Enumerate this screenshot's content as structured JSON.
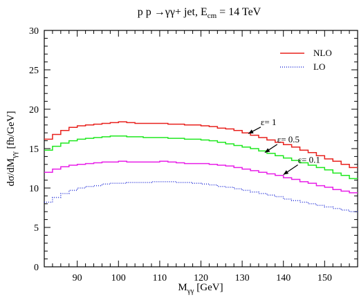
{
  "chart_data": {
    "type": "line",
    "step": true,
    "title": "p p →γγ+ jet, E_cm = 14 TeV",
    "title_parts": {
      "main": "p p →γγ+ jet, E",
      "sub": "cm",
      "tail": " = 14 TeV"
    },
    "xlabel": "Mγγ [GeV]",
    "xlabel_parts": {
      "main": "M",
      "sub": "γγ",
      "tail": " [GeV]"
    },
    "ylabel": "dσ/dMγγ [fb/GeV]",
    "ylabel_parts": {
      "main": "dσ/dM",
      "sub": "γγ",
      "tail": " [fb/GeV]"
    },
    "xlim": [
      82,
      158
    ],
    "ylim": [
      0,
      30
    ],
    "xticks": [
      90,
      100,
      110,
      120,
      130,
      140,
      150
    ],
    "yticks": [
      0,
      5,
      10,
      15,
      20,
      25,
      30
    ],
    "grid": false,
    "legend": {
      "placement": "top-right",
      "entries": [
        {
          "label": "NLO",
          "color": "#e8201c",
          "style": "solid"
        },
        {
          "label": "LO",
          "color": "#2430d8",
          "style": "dotted"
        }
      ]
    },
    "bin_edges": [
      82,
      84,
      86,
      88,
      90,
      92,
      94,
      96,
      98,
      100,
      102,
      104,
      106,
      108,
      110,
      112,
      114,
      116,
      118,
      120,
      122,
      124,
      126,
      128,
      130,
      132,
      134,
      136,
      138,
      140,
      142,
      144,
      146,
      148,
      150,
      152,
      154,
      156,
      158
    ],
    "series": [
      {
        "name": "NLO",
        "curve": "ε = 1",
        "color": "#e8201c",
        "style": "solid",
        "values": [
          16.2,
          16.8,
          17.3,
          17.7,
          17.9,
          18.0,
          18.1,
          18.2,
          18.3,
          18.4,
          18.3,
          18.2,
          18.2,
          18.2,
          18.2,
          18.1,
          18.1,
          18.0,
          18.0,
          17.9,
          17.8,
          17.6,
          17.5,
          17.3,
          17.0,
          16.7,
          16.4,
          16.1,
          15.8,
          15.5,
          15.2,
          14.8,
          14.5,
          14.1,
          13.7,
          13.4,
          13.0,
          12.6
        ]
      },
      {
        "name": "NLO",
        "curve": "ε = 0.5",
        "color": "#1ee81e",
        "style": "solid",
        "values": [
          14.8,
          15.3,
          15.7,
          16.0,
          16.2,
          16.3,
          16.4,
          16.5,
          16.6,
          16.6,
          16.5,
          16.5,
          16.4,
          16.4,
          16.4,
          16.3,
          16.3,
          16.2,
          16.2,
          16.1,
          16.0,
          15.8,
          15.6,
          15.4,
          15.2,
          15.0,
          14.7,
          14.4,
          14.1,
          13.8,
          13.5,
          13.2,
          12.9,
          12.6,
          12.3,
          11.9,
          11.6,
          11.2
        ]
      },
      {
        "name": "NLO",
        "curve": "ε = 0.1",
        "color": "#e81ee8",
        "style": "solid",
        "values": [
          12.0,
          12.4,
          12.7,
          12.9,
          13.0,
          13.1,
          13.2,
          13.3,
          13.3,
          13.4,
          13.3,
          13.3,
          13.3,
          13.3,
          13.4,
          13.3,
          13.2,
          13.1,
          13.1,
          13.1,
          13.0,
          12.9,
          12.8,
          12.6,
          12.4,
          12.2,
          12.0,
          11.8,
          11.6,
          11.3,
          11.1,
          10.8,
          10.6,
          10.3,
          10.1,
          9.8,
          9.6,
          9.4
        ]
      },
      {
        "name": "LO",
        "color": "#2430d8",
        "style": "dotted",
        "values": [
          8.2,
          8.8,
          9.3,
          9.7,
          10.0,
          10.2,
          10.3,
          10.5,
          10.6,
          10.6,
          10.7,
          10.7,
          10.7,
          10.8,
          10.8,
          10.8,
          10.7,
          10.7,
          10.6,
          10.5,
          10.4,
          10.2,
          10.1,
          9.9,
          9.7,
          9.5,
          9.3,
          9.1,
          8.9,
          8.6,
          8.4,
          8.2,
          8.0,
          7.8,
          7.6,
          7.4,
          7.2,
          7.0
        ]
      }
    ],
    "annotations": [
      {
        "text": "ε= 1",
        "x": 134.5,
        "y": 18.0,
        "arrow_to": [
          131.5,
          16.9
        ]
      },
      {
        "text": "ε= 0.5",
        "x": 138.5,
        "y": 15.8,
        "arrow_to": [
          135.5,
          14.5
        ]
      },
      {
        "text": "ε= 0.1",
        "x": 143.5,
        "y": 13.2,
        "arrow_to": [
          140.0,
          11.7
        ]
      }
    ]
  }
}
